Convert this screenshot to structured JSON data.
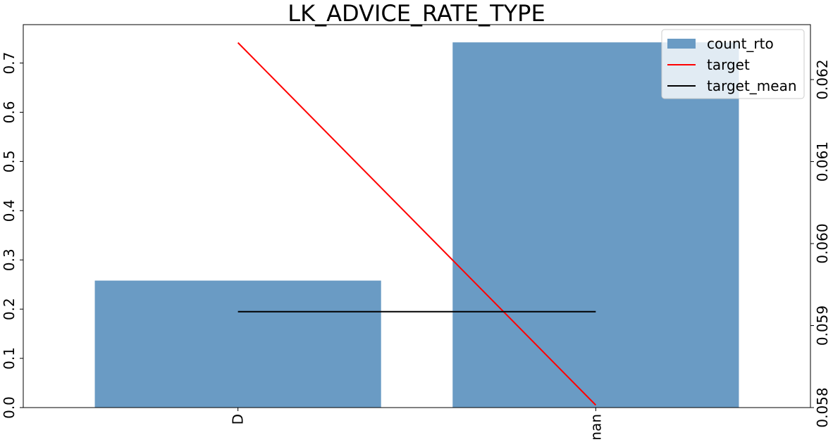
{
  "chart_data": {
    "type": "bar",
    "title": "LK_ADVICE_RATE_TYPE",
    "categories": [
      "D",
      "nan"
    ],
    "series": [
      {
        "name": "count_rto",
        "kind": "bar",
        "axis": "left",
        "values": [
          0.258,
          0.742
        ]
      },
      {
        "name": "target",
        "kind": "line",
        "axis": "right",
        "values": [
          0.06245,
          0.05803
        ]
      },
      {
        "name": "target_mean",
        "kind": "line",
        "axis": "right",
        "values": [
          0.05917,
          0.05917
        ]
      }
    ],
    "y_left": {
      "ylim": [
        0,
        0.778
      ],
      "ticks": [
        0.0,
        0.1,
        0.2,
        0.3,
        0.4,
        0.5,
        0.6,
        0.7
      ],
      "tick_labels": [
        "0.0",
        "0.1",
        "0.2",
        "0.3",
        "0.4",
        "0.5",
        "0.6",
        "0.7"
      ]
    },
    "y_right": {
      "ylim": [
        0.058,
        0.06267
      ],
      "ticks": [
        0.058,
        0.059,
        0.06,
        0.061,
        0.062
      ],
      "tick_labels": [
        "0.058",
        "0.059",
        "0.060",
        "0.061",
        "0.062"
      ]
    },
    "grid": false,
    "legend": "top-right",
    "colors": {
      "count_rto": "#6a9bc4",
      "target": "#ff0000",
      "target_mean": "#000000"
    }
  }
}
